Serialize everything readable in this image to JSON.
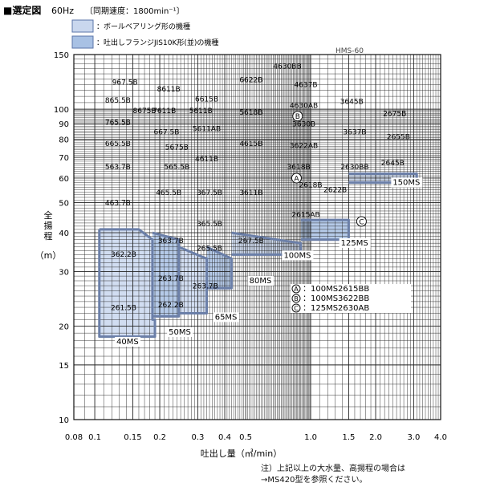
{
  "chart_data": {
    "type": "selection-chart",
    "title_block": "■選定図",
    "title_freq": "60Hz",
    "title_speed": "〔同期速度：1800min⁻¹〕",
    "legend": [
      {
        "text": "：ボールベアリング形の機種",
        "color": "#c9d7ee"
      },
      {
        "text": "：吐出しフランジJIS10K形(並)の機種",
        "color": "#a8c1e4"
      }
    ],
    "model_series": "HMS-60",
    "x_scale": "log",
    "y_scale": "log",
    "xlim": [
      0.08,
      4.0
    ],
    "ylim": [
      10,
      150
    ],
    "xlabel": "吐出し量（㎥/min）",
    "ylabel": "全揚程（m）",
    "x_ticks": [
      {
        "v": 0.08,
        "t": "0.08"
      },
      {
        "v": 0.1,
        "t": "0.1"
      },
      {
        "v": 0.15,
        "t": "0.15"
      },
      {
        "v": 0.2,
        "t": "0.2"
      },
      {
        "v": 0.3,
        "t": "0.3"
      },
      {
        "v": 0.4,
        "t": "0.4"
      },
      {
        "v": 0.5,
        "t": "0.5"
      },
      {
        "v": 1.0,
        "t": "1.0"
      },
      {
        "v": 1.5,
        "t": "1.5"
      },
      {
        "v": 2.0,
        "t": "2.0"
      },
      {
        "v": 3.0,
        "t": "3.0"
      },
      {
        "v": 4.0,
        "t": "4.0"
      }
    ],
    "y_ticks": [
      {
        "v": 10,
        "t": "10"
      },
      {
        "v": 15,
        "t": "15"
      },
      {
        "v": 20,
        "t": "20"
      },
      {
        "v": 30,
        "t": "30"
      },
      {
        "v": 40,
        "t": "40"
      },
      {
        "v": 50,
        "t": "50"
      },
      {
        "v": 60,
        "t": "60"
      },
      {
        "v": 70,
        "t": "70"
      },
      {
        "v": 80,
        "t": "80"
      },
      {
        "v": 90,
        "t": "90"
      },
      {
        "v": 100,
        "t": "100"
      },
      {
        "v": 150,
        "t": "150"
      }
    ],
    "grid": true,
    "groups": [
      {
        "series": "40MS",
        "fill": "#cdd9ee",
        "corners": [
          [
            0.1,
            19
          ],
          [
            0.185,
            19
          ],
          [
            0.185,
            21
          ],
          [
            0.1,
            21
          ]
        ],
        "label_at": [
          0.126,
          17.5
        ]
      },
      {
        "series": "50MS",
        "fill": "#cdd9ee",
        "corners": [
          [
            0.185,
            21
          ],
          [
            0.245,
            21
          ],
          [
            0.245,
            24
          ],
          [
            0.185,
            24
          ]
        ],
        "label_at": [
          0.22,
          18.8
        ]
      },
      {
        "series": "65MS",
        "fill": "#cdd9ee",
        "corners": [
          [
            0.245,
            22
          ],
          [
            0.33,
            22
          ],
          [
            0.33,
            26
          ],
          [
            0.245,
            26
          ]
        ],
        "label_at": [
          0.36,
          21.0
        ]
      },
      {
        "series": "80MS",
        "fill": "#cdd9ee",
        "corners": [
          [
            0.33,
            30
          ],
          [
            0.43,
            30
          ],
          [
            0.43,
            33
          ],
          [
            0.33,
            33
          ]
        ],
        "label_at": [
          0.52,
          27.5
        ]
      },
      {
        "series": "100MS",
        "fill": "#cdd9ee",
        "corners": [
          [
            0.43,
            34
          ],
          [
            0.9,
            34
          ],
          [
            0.9,
            38
          ],
          [
            0.43,
            38
          ]
        ],
        "label_at": [
          0.75,
          33.2
        ]
      },
      {
        "series": "125MS",
        "fill": "#cdd9ee",
        "corners": [
          [
            0.9,
            38
          ],
          [
            1.5,
            38
          ],
          [
            1.5,
            46
          ],
          [
            0.9,
            46
          ]
        ],
        "label_at": [
          1.38,
          36.4
        ]
      },
      {
        "series": "150MS",
        "fill": "#cdd9ee",
        "corners": [
          [
            1.5,
            58
          ],
          [
            3.1,
            58
          ],
          [
            3.1,
            64
          ],
          [
            1.5,
            64
          ]
        ],
        "label_at": [
          2.4,
          57.0
        ]
      }
    ],
    "series_boundaries": [
      {
        "series": "40MS",
        "points": [
          [
            0.105,
            41
          ],
          [
            0.16,
            41
          ],
          [
            0.185,
            38
          ],
          [
            0.185,
            21
          ],
          [
            0.19,
            21
          ],
          [
            0.19,
            18.5
          ],
          [
            0.105,
            18.5
          ],
          [
            0.105,
            41
          ]
        ]
      },
      {
        "series": "50MS",
        "points": [
          [
            0.185,
            40
          ],
          [
            0.245,
            38
          ],
          [
            0.245,
            21.5
          ],
          [
            0.185,
            21.5
          ]
        ]
      },
      {
        "series": "65MS",
        "points": [
          [
            0.245,
            36
          ],
          [
            0.33,
            33
          ],
          [
            0.33,
            22
          ],
          [
            0.245,
            22
          ]
        ]
      },
      {
        "series": "80MS",
        "points": [
          [
            0.33,
            36
          ],
          [
            0.43,
            33
          ],
          [
            0.43,
            26.5
          ],
          [
            0.33,
            26.5
          ]
        ]
      },
      {
        "series": "100MS",
        "points": [
          [
            0.43,
            40
          ],
          [
            0.9,
            37
          ],
          [
            0.9,
            34
          ],
          [
            0.43,
            34
          ]
        ]
      },
      {
        "series": "125MS",
        "points": [
          [
            0.9,
            44
          ],
          [
            1.5,
            44
          ],
          [
            1.5,
            38
          ],
          [
            0.9,
            38
          ]
        ]
      },
      {
        "series": "150MS",
        "points": [
          [
            1.5,
            62
          ],
          [
            3.1,
            62
          ],
          [
            3.1,
            58
          ],
          [
            1.5,
            58
          ]
        ]
      }
    ],
    "pump_labels": [
      {
        "t": "967.5B",
        "x": 0.138,
        "y": 120
      },
      {
        "t": "865.5B",
        "x": 0.128,
        "y": 105
      },
      {
        "t": "8675B",
        "x": 0.17,
        "y": 97
      },
      {
        "t": "765.5B",
        "x": 0.128,
        "y": 89
      },
      {
        "t": "665.5B",
        "x": 0.128,
        "y": 76
      },
      {
        "t": "563.7B",
        "x": 0.128,
        "y": 64
      },
      {
        "t": "463.7B",
        "x": 0.128,
        "y": 49
      },
      {
        "t": "362.2B",
        "x": 0.136,
        "y": 33.5
      },
      {
        "t": "261.5B",
        "x": 0.136,
        "y": 22.5
      },
      {
        "t": "8611B",
        "x": 0.22,
        "y": 114
      },
      {
        "t": "7611B",
        "x": 0.21,
        "y": 97
      },
      {
        "t": "667.5B",
        "x": 0.215,
        "y": 83
      },
      {
        "t": "5675B",
        "x": 0.24,
        "y": 74
      },
      {
        "t": "565.5B",
        "x": 0.24,
        "y": 64
      },
      {
        "t": "465.5B",
        "x": 0.22,
        "y": 53
      },
      {
        "t": "363.7B",
        "x": 0.225,
        "y": 37
      },
      {
        "t": "263.7B",
        "x": 0.225,
        "y": 28
      },
      {
        "t": "262.2B",
        "x": 0.225,
        "y": 23
      },
      {
        "t": "6615B",
        "x": 0.33,
        "y": 106
      },
      {
        "t": "5611B",
        "x": 0.31,
        "y": 97
      },
      {
        "t": "5611AB",
        "x": 0.33,
        "y": 85
      },
      {
        "t": "4611B",
        "x": 0.33,
        "y": 68
      },
      {
        "t": "367.5B",
        "x": 0.34,
        "y": 53
      },
      {
        "t": "365.5B",
        "x": 0.34,
        "y": 42
      },
      {
        "t": "265.5B",
        "x": 0.34,
        "y": 35
      },
      {
        "t": "263.7B",
        "x": 0.325,
        "y": 26.5
      },
      {
        "t": "6622B",
        "x": 0.53,
        "y": 122
      },
      {
        "t": "5618B",
        "x": 0.53,
        "y": 96
      },
      {
        "t": "4615B",
        "x": 0.53,
        "y": 76
      },
      {
        "t": "3611B",
        "x": 0.53,
        "y": 53
      },
      {
        "t": "267.5B",
        "x": 0.53,
        "y": 37
      },
      {
        "t": "4630BB",
        "x": 0.78,
        "y": 135
      },
      {
        "t": "4637B",
        "x": 0.95,
        "y": 118
      },
      {
        "t": "4630AB",
        "x": 0.93,
        "y": 101
      },
      {
        "t": "3630B",
        "x": 0.93,
        "y": 88
      },
      {
        "t": "3622AB",
        "x": 0.93,
        "y": 75
      },
      {
        "t": "3618B",
        "x": 0.88,
        "y": 64
      },
      {
        "t": "2618B",
        "x": 1.0,
        "y": 56
      },
      {
        "t": "2615AB",
        "x": 0.95,
        "y": 45
      },
      {
        "t": "2622B",
        "x": 1.3,
        "y": 54
      },
      {
        "t": "3645B",
        "x": 1.55,
        "y": 104
      },
      {
        "t": "3637B",
        "x": 1.6,
        "y": 83
      },
      {
        "t": "2630BB",
        "x": 1.6,
        "y": 64
      },
      {
        "t": "2675B",
        "x": 2.45,
        "y": 95
      },
      {
        "t": "2655B",
        "x": 2.55,
        "y": 80
      },
      {
        "t": "2645B",
        "x": 2.4,
        "y": 66
      }
    ],
    "marks": [
      {
        "mark": "A",
        "x": 0.86,
        "y": 60
      },
      {
        "mark": "B",
        "x": 0.87,
        "y": 95
      },
      {
        "mark": "C",
        "x": 1.72,
        "y": 43.5
      }
    ],
    "mark_legend": [
      {
        "mark": "A",
        "t": "：100MS2615BB"
      },
      {
        "mark": "B",
        "t": "：100MS3622BB"
      },
      {
        "mark": "C",
        "t": "：125MS2630AB"
      }
    ],
    "series_labels": [
      "40MS",
      "50MS",
      "65MS",
      "80MS",
      "100MS",
      "125MS",
      "150MS"
    ]
  },
  "note_line1": "注）上記以上の大水量、高揚程の場合は",
  "note_line2": "→MS420型を参照ください。"
}
